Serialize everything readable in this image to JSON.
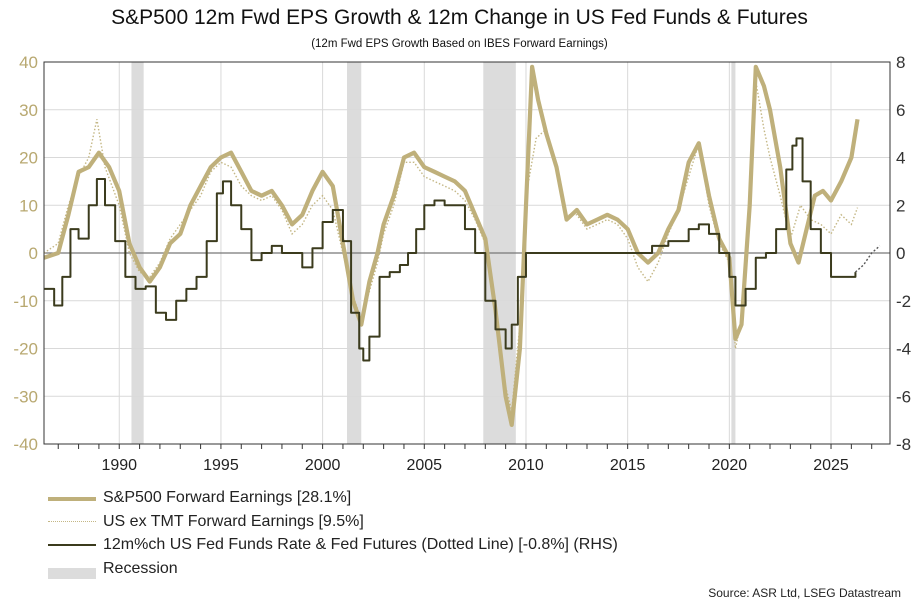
{
  "chart_data": {
    "type": "line",
    "title": "S&P500 12m Fwd EPS Growth & 12m Change in US Fed Funds & Futures",
    "subtitle": "(12m Fwd EPS Growth Based on IBES Forward Earnings)",
    "source": "Source: ASR Ltd, LSEG Datastream",
    "x_range": [
      1986.3,
      2027.9
    ],
    "x_ticks": [
      1990,
      1995,
      2000,
      2005,
      2010,
      2015,
      2020,
      2025
    ],
    "x_tick_labels": [
      "1990",
      "1995",
      "2000",
      "2005",
      "2010",
      "2015",
      "2020",
      "2025"
    ],
    "y_left": {
      "range": [
        -40,
        40
      ],
      "ticks": [
        40,
        30,
        20,
        10,
        0,
        -10,
        -20,
        -30,
        -40
      ],
      "labels": [
        "40",
        "30",
        "20",
        "10",
        "0",
        "-10",
        "-20",
        "-30",
        "-40"
      ]
    },
    "y_right": {
      "range": [
        -8,
        8
      ],
      "ticks": [
        8,
        6,
        4,
        2,
        0,
        -2,
        -4,
        -6,
        -8
      ],
      "labels": [
        "8",
        "6",
        "4",
        "2",
        "0",
        "-2",
        "-4",
        "-6",
        "-8"
      ]
    },
    "grid": true,
    "legend_position": "bottom-left",
    "colors": {
      "sp500": "#bfb07b",
      "ex_tmt": "#c4b785",
      "fed": "#3b3b1d",
      "recession": "#dcdcdc",
      "tick_left": "#b8a870"
    },
    "recessions": [
      [
        1990.6,
        1991.2
      ],
      [
        2001.2,
        2001.9
      ],
      [
        2007.9,
        2009.5
      ],
      [
        2020.1,
        2020.3
      ]
    ],
    "series": [
      {
        "name": "S&P500 Forward Earnings [28.1%]",
        "axis": "left",
        "style": "thick",
        "points": [
          [
            1986.3,
            -1
          ],
          [
            1987.0,
            0
          ],
          [
            1987.5,
            8
          ],
          [
            1988.0,
            17
          ],
          [
            1988.5,
            18
          ],
          [
            1989.0,
            21
          ],
          [
            1989.5,
            18
          ],
          [
            1990.0,
            13
          ],
          [
            1990.5,
            2
          ],
          [
            1991.0,
            -3
          ],
          [
            1991.5,
            -6
          ],
          [
            1992.0,
            -3
          ],
          [
            1992.5,
            2
          ],
          [
            1993.0,
            4
          ],
          [
            1993.5,
            10
          ],
          [
            1994.0,
            14
          ],
          [
            1994.5,
            18
          ],
          [
            1995.0,
            20
          ],
          [
            1995.5,
            21
          ],
          [
            1996.0,
            17
          ],
          [
            1996.5,
            13
          ],
          [
            1997.0,
            12
          ],
          [
            1997.5,
            13
          ],
          [
            1998.0,
            10
          ],
          [
            1998.5,
            6
          ],
          [
            1999.0,
            8
          ],
          [
            1999.5,
            13
          ],
          [
            2000.0,
            17
          ],
          [
            2000.5,
            14
          ],
          [
            2001.0,
            2
          ],
          [
            2001.5,
            -10
          ],
          [
            2001.9,
            -15
          ],
          [
            2002.3,
            -6
          ],
          [
            2002.7,
            0
          ],
          [
            2003.0,
            6
          ],
          [
            2003.5,
            12
          ],
          [
            2004.0,
            20
          ],
          [
            2004.5,
            21
          ],
          [
            2005.0,
            18
          ],
          [
            2005.5,
            17
          ],
          [
            2006.0,
            16
          ],
          [
            2006.5,
            15
          ],
          [
            2007.0,
            13
          ],
          [
            2007.5,
            8
          ],
          [
            2008.0,
            3
          ],
          [
            2008.5,
            -12
          ],
          [
            2009.0,
            -30
          ],
          [
            2009.3,
            -36
          ],
          [
            2009.7,
            -20
          ],
          [
            2010.0,
            10
          ],
          [
            2010.3,
            39
          ],
          [
            2010.6,
            32
          ],
          [
            2011.0,
            25
          ],
          [
            2011.5,
            18
          ],
          [
            2012.0,
            7
          ],
          [
            2012.5,
            9
          ],
          [
            2013.0,
            6
          ],
          [
            2013.5,
            7
          ],
          [
            2014.0,
            8
          ],
          [
            2014.5,
            7
          ],
          [
            2015.0,
            5
          ],
          [
            2015.5,
            0
          ],
          [
            2016.0,
            -2
          ],
          [
            2016.5,
            0
          ],
          [
            2017.0,
            5
          ],
          [
            2017.5,
            9
          ],
          [
            2018.0,
            19
          ],
          [
            2018.5,
            23
          ],
          [
            2019.0,
            12
          ],
          [
            2019.5,
            3
          ],
          [
            2020.0,
            -1
          ],
          [
            2020.3,
            -18
          ],
          [
            2020.6,
            -15
          ],
          [
            2021.0,
            10
          ],
          [
            2021.3,
            39
          ],
          [
            2021.7,
            35
          ],
          [
            2022.0,
            30
          ],
          [
            2022.5,
            18
          ],
          [
            2023.0,
            2
          ],
          [
            2023.4,
            -2
          ],
          [
            2023.8,
            5
          ],
          [
            2024.2,
            12
          ],
          [
            2024.6,
            13
          ],
          [
            2025.0,
            11
          ],
          [
            2025.5,
            15
          ],
          [
            2026.0,
            20
          ],
          [
            2026.3,
            28
          ]
        ]
      },
      {
        "name": "US ex TMT Forward Earnings [9.5%]",
        "axis": "left",
        "style": "dotted",
        "points": [
          [
            1986.3,
            0
          ],
          [
            1987.0,
            2
          ],
          [
            1987.5,
            10
          ],
          [
            1988.0,
            16
          ],
          [
            1988.5,
            20
          ],
          [
            1988.9,
            28
          ],
          [
            1989.3,
            18
          ],
          [
            1990.0,
            10
          ],
          [
            1990.5,
            0
          ],
          [
            1991.0,
            -4
          ],
          [
            1991.5,
            -5
          ],
          [
            1992.0,
            -2
          ],
          [
            1992.5,
            3
          ],
          [
            1993.0,
            6
          ],
          [
            1993.5,
            9
          ],
          [
            1994.0,
            12
          ],
          [
            1994.5,
            17
          ],
          [
            1995.0,
            19
          ],
          [
            1995.5,
            18
          ],
          [
            1996.0,
            14
          ],
          [
            1996.5,
            12
          ],
          [
            1997.0,
            11
          ],
          [
            1997.5,
            12
          ],
          [
            1998.0,
            9
          ],
          [
            1998.5,
            4
          ],
          [
            1999.0,
            6
          ],
          [
            1999.5,
            10
          ],
          [
            2000.0,
            12
          ],
          [
            2000.5,
            9
          ],
          [
            2001.0,
            0
          ],
          [
            2001.5,
            -9
          ],
          [
            2001.9,
            -14
          ],
          [
            2002.3,
            -8
          ],
          [
            2002.7,
            -2
          ],
          [
            2003.0,
            4
          ],
          [
            2003.5,
            10
          ],
          [
            2004.0,
            19
          ],
          [
            2004.5,
            19
          ],
          [
            2005.0,
            16
          ],
          [
            2005.5,
            15
          ],
          [
            2006.0,
            14
          ],
          [
            2006.5,
            13
          ],
          [
            2007.0,
            11
          ],
          [
            2007.5,
            7
          ],
          [
            2008.0,
            2
          ],
          [
            2008.5,
            -12
          ],
          [
            2009.0,
            -28
          ],
          [
            2009.3,
            -33
          ],
          [
            2009.7,
            -15
          ],
          [
            2010.0,
            12
          ],
          [
            2010.5,
            24
          ],
          [
            2011.0,
            26
          ],
          [
            2011.5,
            18
          ],
          [
            2012.0,
            8
          ],
          [
            2012.5,
            8
          ],
          [
            2013.0,
            5
          ],
          [
            2013.5,
            6
          ],
          [
            2014.0,
            7
          ],
          [
            2014.5,
            6
          ],
          [
            2015.0,
            3
          ],
          [
            2015.5,
            -3
          ],
          [
            2016.0,
            -6
          ],
          [
            2016.5,
            -2
          ],
          [
            2017.0,
            4
          ],
          [
            2017.5,
            9
          ],
          [
            2018.0,
            16
          ],
          [
            2018.5,
            23
          ],
          [
            2019.0,
            10
          ],
          [
            2019.5,
            2
          ],
          [
            2020.0,
            -2
          ],
          [
            2020.3,
            -20
          ],
          [
            2020.6,
            -14
          ],
          [
            2021.0,
            8
          ],
          [
            2021.3,
            36
          ],
          [
            2021.7,
            26
          ],
          [
            2022.0,
            20
          ],
          [
            2022.5,
            12
          ],
          [
            2023.0,
            3
          ],
          [
            2023.5,
            10
          ],
          [
            2024.0,
            7
          ],
          [
            2024.5,
            6
          ],
          [
            2025.0,
            4
          ],
          [
            2025.5,
            8
          ],
          [
            2026.0,
            6
          ],
          [
            2026.3,
            9.5
          ]
        ]
      },
      {
        "name": "12m%ch US Fed Funds Rate & Fed Futures (Dotted Line) [-0.8%] (RHS)",
        "axis": "right",
        "style": "solid",
        "points": [
          [
            1986.3,
            -1.5
          ],
          [
            1986.8,
            -2.2
          ],
          [
            1987.2,
            -1
          ],
          [
            1987.6,
            1
          ],
          [
            1988.0,
            0.6
          ],
          [
            1988.5,
            2
          ],
          [
            1988.9,
            3.1
          ],
          [
            1989.3,
            2
          ],
          [
            1989.8,
            0.5
          ],
          [
            1990.3,
            -1
          ],
          [
            1990.8,
            -1.5
          ],
          [
            1991.3,
            -1.4
          ],
          [
            1991.8,
            -2.5
          ],
          [
            1992.3,
            -2.8
          ],
          [
            1992.8,
            -2
          ],
          [
            1993.3,
            -1.5
          ],
          [
            1993.8,
            -1
          ],
          [
            1994.3,
            0.5
          ],
          [
            1994.8,
            2.5
          ],
          [
            1995.1,
            3
          ],
          [
            1995.5,
            2
          ],
          [
            1996.0,
            1
          ],
          [
            1996.5,
            -0.3
          ],
          [
            1997.0,
            0
          ],
          [
            1997.5,
            0.3
          ],
          [
            1998.0,
            0
          ],
          [
            1998.5,
            0
          ],
          [
            1999.0,
            -0.6
          ],
          [
            1999.5,
            0.2
          ],
          [
            2000.0,
            1.3
          ],
          [
            2000.5,
            1.8
          ],
          [
            2001.0,
            0.5
          ],
          [
            2001.4,
            -2.5
          ],
          [
            2001.8,
            -4
          ],
          [
            2002.0,
            -4.5
          ],
          [
            2002.3,
            -3.5
          ],
          [
            2002.8,
            -1
          ],
          [
            2003.3,
            -0.8
          ],
          [
            2003.8,
            -0.5
          ],
          [
            2004.2,
            0
          ],
          [
            2004.6,
            1
          ],
          [
            2005.0,
            2
          ],
          [
            2005.5,
            2.2
          ],
          [
            2006.0,
            2
          ],
          [
            2006.5,
            2
          ],
          [
            2007.0,
            1
          ],
          [
            2007.5,
            0
          ],
          [
            2008.0,
            -2
          ],
          [
            2008.5,
            -3.2
          ],
          [
            2009.0,
            -4
          ],
          [
            2009.3,
            -3
          ],
          [
            2009.6,
            -1
          ],
          [
            2010.0,
            0
          ],
          [
            2013.0,
            0
          ],
          [
            2015.8,
            0
          ],
          [
            2016.2,
            0.3
          ],
          [
            2017.0,
            0.5
          ],
          [
            2018.0,
            1
          ],
          [
            2018.5,
            1.2
          ],
          [
            2019.0,
            0.8
          ],
          [
            2019.5,
            0
          ],
          [
            2020.0,
            -1
          ],
          [
            2020.3,
            -2.2
          ],
          [
            2020.8,
            -1.5
          ],
          [
            2021.3,
            -0.2
          ],
          [
            2021.8,
            0
          ],
          [
            2022.3,
            1
          ],
          [
            2022.8,
            3.5
          ],
          [
            2023.1,
            4.5
          ],
          [
            2023.3,
            4.8
          ],
          [
            2023.6,
            3
          ],
          [
            2024.0,
            1
          ],
          [
            2024.5,
            0
          ],
          [
            2025.0,
            -1
          ],
          [
            2025.5,
            -1
          ],
          [
            2026.2,
            -0.8
          ]
        ]
      },
      {
        "name": "Fed Futures (Dotted Line)",
        "axis": "right",
        "style": "dotted-dark",
        "legend": false,
        "points": [
          [
            2026.2,
            -0.8
          ],
          [
            2026.6,
            -0.5
          ],
          [
            2027.0,
            0
          ],
          [
            2027.4,
            0.3
          ]
        ]
      }
    ]
  }
}
